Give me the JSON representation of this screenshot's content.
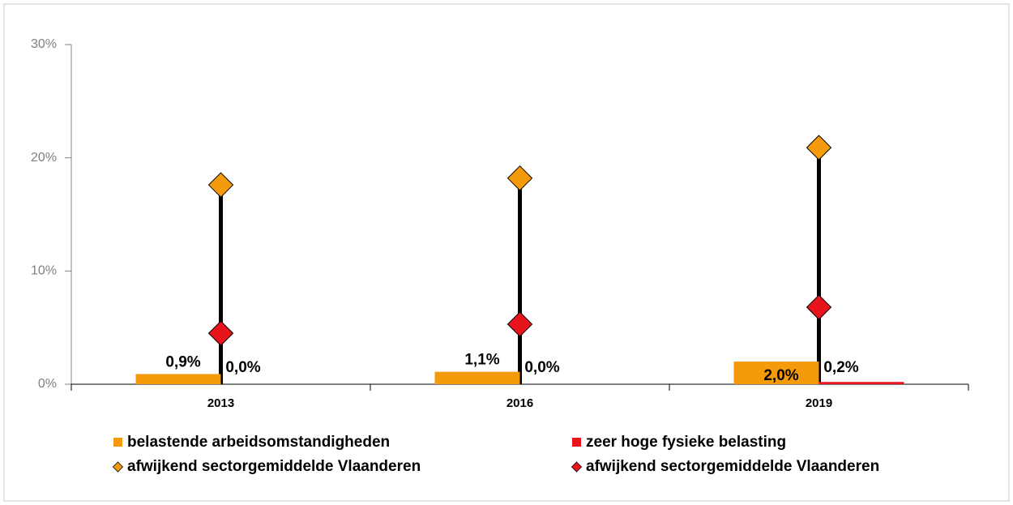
{
  "chart_data": {
    "type": "bar-marker",
    "categories": [
      "2013",
      "2016",
      "2019"
    ],
    "series": [
      {
        "name": "belastende arbeidsomstandigheden",
        "kind": "bar",
        "color": "#f59a0a",
        "values": [
          0.9,
          1.1,
          2.0
        ],
        "value_labels": [
          "0,9%",
          "1,1%",
          "2,0%"
        ]
      },
      {
        "name": "zeer hoge fysieke belasting",
        "kind": "bar",
        "color": "#e8141b",
        "values": [
          0.0,
          0.0,
          0.2
        ],
        "value_labels": [
          "0,0%",
          "0,0%",
          "0,2%"
        ]
      },
      {
        "name": "afwijkend sectorgemiddelde Vlaanderen",
        "kind": "marker",
        "color": "#f59a0a",
        "values": [
          17.6,
          18.2,
          20.9
        ]
      },
      {
        "name": "afwijkend sectorgemiddelde Vlaanderen",
        "kind": "marker",
        "color": "#e8141b",
        "values": [
          4.5,
          5.3,
          6.8
        ]
      }
    ],
    "ylim": [
      0,
      30
    ],
    "yticks": [
      {
        "value": 0,
        "label": "0%"
      },
      {
        "value": 10,
        "label": "10%"
      },
      {
        "value": 20,
        "label": "20%"
      },
      {
        "value": 30,
        "label": "30%"
      }
    ]
  }
}
